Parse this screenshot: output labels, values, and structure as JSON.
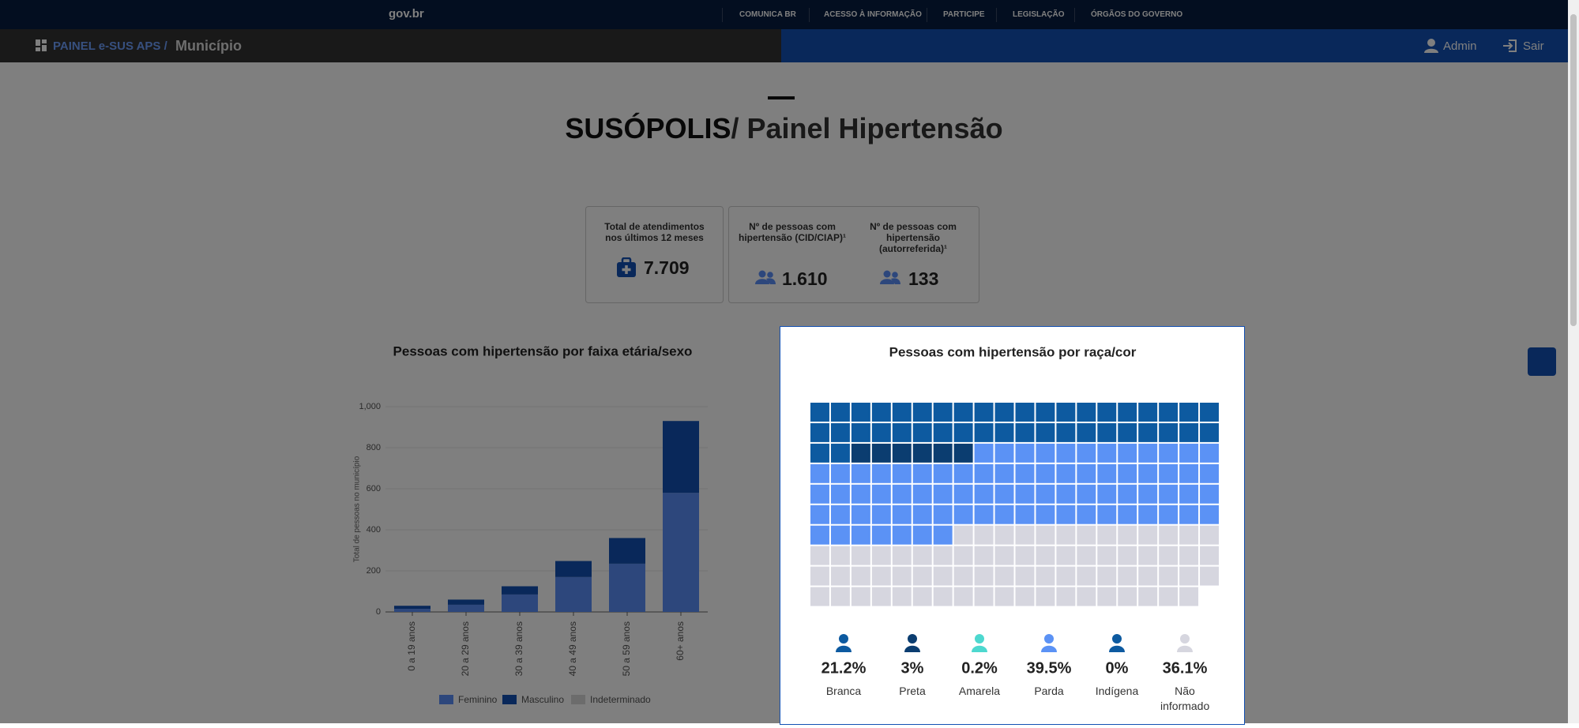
{
  "govbar": {
    "logo": "gov.br",
    "links": [
      "COMUNICA BR",
      "ACESSO À INFORMAÇÃO",
      "PARTICIPE",
      "LEGISLAÇÃO",
      "ÓRGÃOS DO GOVERNO"
    ]
  },
  "header": {
    "app": "PAINEL e-SUS APS /",
    "section": "Município",
    "user": "Admin",
    "logout": "Sair"
  },
  "title": {
    "city": "SUSÓPOLIS",
    "page": "/ Painel Hipertensão"
  },
  "kpis": [
    {
      "label": "Total de atendimentos nos últimos 12 meses",
      "value": "7.709"
    },
    {
      "label": "Nº de pessoas com hipertensão (CID/CIAP)¹",
      "value": "1.610"
    },
    {
      "label": "Nº de pessoas com hipertensão (autorreferida)¹",
      "value": "133"
    }
  ],
  "chart_data": [
    {
      "type": "bar",
      "stacked": true,
      "title": "Pessoas com hipertensão por faixa etária/sexo",
      "y_label": "Total de pessoas no município",
      "categories": [
        "0 a 19 anos",
        "20 a 29 anos",
        "30 a 39 anos",
        "40 a 49 anos",
        "50 a 59 anos",
        "60+ anos"
      ],
      "series": [
        {
          "name": "Feminino",
          "color": "#5b8ff9",
          "values": [
            15,
            35,
            85,
            170,
            235,
            580
          ]
        },
        {
          "name": "Masculino",
          "color": "#1351b4",
          "values": [
            15,
            25,
            40,
            78,
            125,
            350
          ]
        },
        {
          "name": "Indeterminado",
          "color": "#d9d9d9",
          "values": [
            0,
            0,
            0,
            0,
            0,
            0
          ]
        }
      ],
      "ylim": [
        0,
        1000
      ],
      "yticks": [
        0,
        200,
        400,
        600,
        800,
        {
          "value": 1000,
          "label": "1,000"
        }
      ],
      "grid": true
    },
    {
      "type": "waffle",
      "title": "Pessoas com hipertensão por raça/cor",
      "categories": [
        "Branca",
        "Preta",
        "Amarela",
        "Parda",
        "Indígena",
        "Não informado"
      ],
      "values": [
        21.2,
        3,
        0.2,
        39.5,
        0,
        36.1
      ],
      "value_labels": [
        "21.2%",
        "3%",
        "0.2%",
        "39.5%",
        "0%",
        "36.1%"
      ],
      "colors": [
        "#0d5aa0",
        "#0b3d70",
        "#4dd8cf",
        "#5b92f5",
        "#0d5aa0",
        "#d6d6df"
      ]
    }
  ]
}
